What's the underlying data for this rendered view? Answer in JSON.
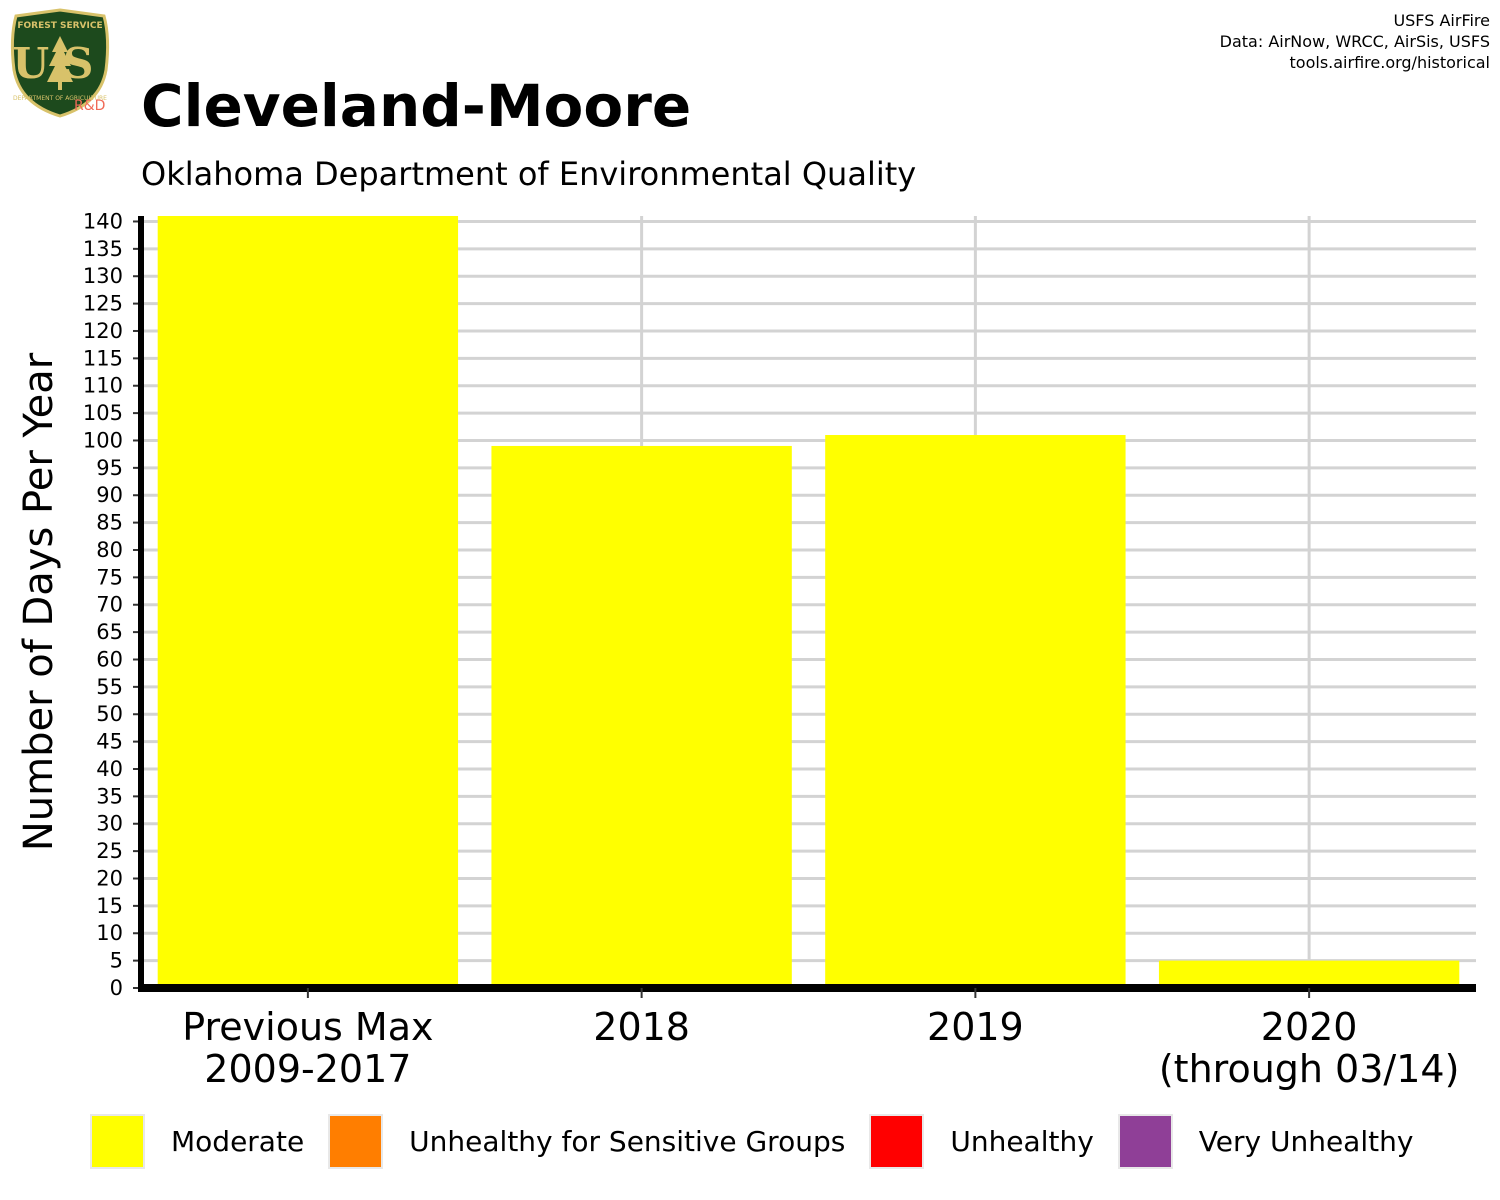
{
  "header": {
    "title": "Cleveland-Moore",
    "subtitle": "Oklahoma Department of Environmental Quality",
    "credits": [
      "USFS AirFire",
      "Data: AirNow, WRCC, AirSis, USFS",
      "tools.airfire.org/historical"
    ]
  },
  "logo": {
    "top_text": "FOREST SERVICE",
    "letters": "US",
    "bottom_text": "DEPARTMENT OF AGRICULTURE",
    "tag": "R&D"
  },
  "colors": {
    "moderate": "#FFFF00",
    "usg": "#FF7E00",
    "unhealthy": "#FF0000",
    "very_unhealthy": "#8F3F97",
    "grid": "#d3d3d3",
    "axis": "#000000",
    "logo_green": "#1d4a1d",
    "logo_gold": "#d8c26a"
  },
  "chart_data": {
    "type": "bar",
    "ylabel": "Number of Days Per Year",
    "xlabel": "",
    "ylim": [
      0,
      141
    ],
    "ytick_step": 5,
    "grid": true,
    "categories": [
      [
        "Previous Max",
        "2009-2017"
      ],
      [
        "2018"
      ],
      [
        "2019"
      ],
      [
        "2020",
        "(through 03/14)"
      ]
    ],
    "series": [
      {
        "name": "Moderate",
        "color": "#FFFF00",
        "values": [
          141,
          99,
          101,
          5
        ]
      }
    ]
  },
  "legend": [
    {
      "label": "Moderate",
      "color": "#FFFF00"
    },
    {
      "label": "Unhealthy for Sensitive Groups",
      "color": "#FF7E00"
    },
    {
      "label": "Unhealthy",
      "color": "#FF0000"
    },
    {
      "label": "Very Unhealthy",
      "color": "#8F3F97"
    }
  ]
}
